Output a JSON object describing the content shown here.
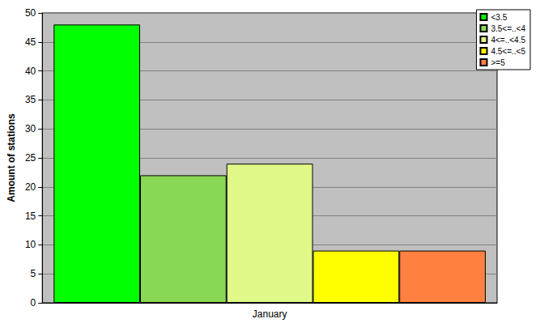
{
  "chart_data": {
    "type": "bar",
    "y_label": "Amount of stations",
    "categories": [
      "January"
    ],
    "series": [
      {
        "name": "<3.5",
        "color": "#00ff00",
        "values": [
          48
        ]
      },
      {
        "name": "3.5<=..<4",
        "color": "#88d855",
        "values": [
          22
        ]
      },
      {
        "name": "4<=..<4.5",
        "color": "#e0f888",
        "values": [
          24
        ]
      },
      {
        "name": "4.5<=..<5",
        "color": "#ffff00",
        "values": [
          9
        ]
      },
      {
        "name": ">=5",
        "color": "#ff8040",
        "values": [
          9
        ]
      }
    ],
    "ylim": [
      0,
      50
    ],
    "yticks": [
      0,
      5,
      10,
      15,
      20,
      25,
      30,
      35,
      40,
      45,
      50
    ],
    "grid": true,
    "legend": "upper right"
  }
}
